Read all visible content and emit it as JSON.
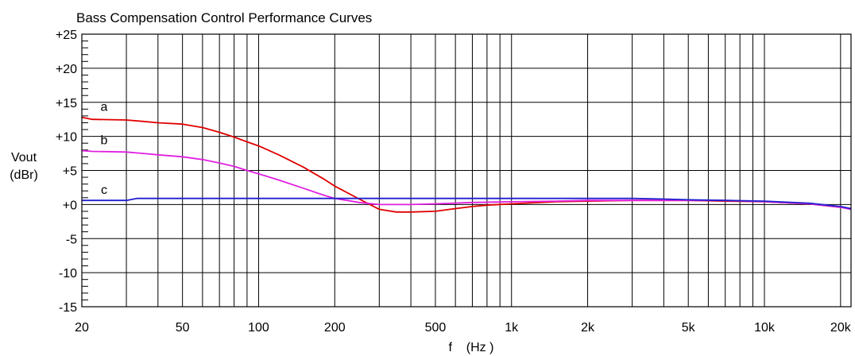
{
  "chart_data": {
    "type": "line",
    "title": "Bass Compensation Control Performance Curves",
    "xlabel": "f    (Hz )",
    "ylabel_lines": [
      "Vout",
      "(dBr)"
    ],
    "x_scale": "log",
    "xlim": [
      20,
      22000
    ],
    "ylim": [
      -15,
      25
    ],
    "grid": true,
    "x_ticks": [
      {
        "value": 20,
        "label": "20"
      },
      {
        "value": 50,
        "label": "50"
      },
      {
        "value": 100,
        "label": "100"
      },
      {
        "value": 200,
        "label": "200"
      },
      {
        "value": 500,
        "label": "500"
      },
      {
        "value": 1000,
        "label": "1k"
      },
      {
        "value": 2000,
        "label": "2k"
      },
      {
        "value": 5000,
        "label": "5k"
      },
      {
        "value": 10000,
        "label": "10k"
      },
      {
        "value": 20000,
        "label": "20k"
      }
    ],
    "y_ticks": [
      {
        "value": 25,
        "label": "+25"
      },
      {
        "value": 20,
        "label": "+20"
      },
      {
        "value": 15,
        "label": "+15"
      },
      {
        "value": 10,
        "label": "+10"
      },
      {
        "value": 5,
        "label": "+5"
      },
      {
        "value": 0,
        "label": "+0"
      },
      {
        "value": -5,
        "label": "-5"
      },
      {
        "value": -10,
        "label": "-10"
      },
      {
        "value": -15,
        "label": "-15"
      }
    ],
    "series": [
      {
        "name": "a",
        "color": "#e00000",
        "x": [
          20,
          22,
          30,
          35,
          40,
          50,
          60,
          70,
          80,
          90,
          100,
          120,
          150,
          180,
          200,
          250,
          300,
          350,
          400,
          500,
          600,
          700,
          800,
          1000,
          1500,
          2000,
          3000,
          5000,
          7000,
          10000,
          15000,
          20000,
          22000
        ],
        "y": [
          12.8,
          12.5,
          12.4,
          12.2,
          12.0,
          11.8,
          11.3,
          10.6,
          9.9,
          9.2,
          8.6,
          7.3,
          5.5,
          3.8,
          2.7,
          0.8,
          -0.7,
          -1.1,
          -1.1,
          -1.0,
          -0.6,
          -0.3,
          -0.1,
          0.1,
          0.4,
          0.5,
          0.6,
          0.6,
          0.5,
          0.4,
          0.1,
          -0.4,
          -0.7
        ]
      },
      {
        "name": "b",
        "color": "#e020e0",
        "x": [
          20,
          22,
          30,
          35,
          40,
          50,
          60,
          70,
          80,
          90,
          100,
          120,
          150,
          180,
          200,
          250,
          300,
          400,
          500,
          700,
          1000,
          1500,
          2000,
          3000,
          5000,
          7000,
          10000,
          15000,
          20000,
          22000
        ],
        "y": [
          7.9,
          7.8,
          7.7,
          7.5,
          7.3,
          7.0,
          6.6,
          6.1,
          5.6,
          5.0,
          4.5,
          3.6,
          2.4,
          1.4,
          0.9,
          0.3,
          0.0,
          0.0,
          0.1,
          0.3,
          0.4,
          0.5,
          0.6,
          0.6,
          0.6,
          0.6,
          0.4,
          0.1,
          -0.4,
          -0.7
        ]
      },
      {
        "name": "c",
        "color": "#1f1fd0",
        "x": [
          20,
          25,
          30,
          33,
          40,
          50,
          100,
          200,
          300,
          500,
          1000,
          1500,
          2000,
          3000,
          4000,
          5000,
          7000,
          10000,
          15000,
          20000,
          22000
        ],
        "y": [
          0.6,
          0.6,
          0.6,
          0.9,
          0.9,
          0.9,
          0.9,
          0.9,
          0.9,
          0.9,
          0.9,
          0.9,
          0.9,
          0.9,
          0.8,
          0.7,
          0.6,
          0.5,
          0.2,
          -0.3,
          -0.6
        ]
      }
    ]
  }
}
